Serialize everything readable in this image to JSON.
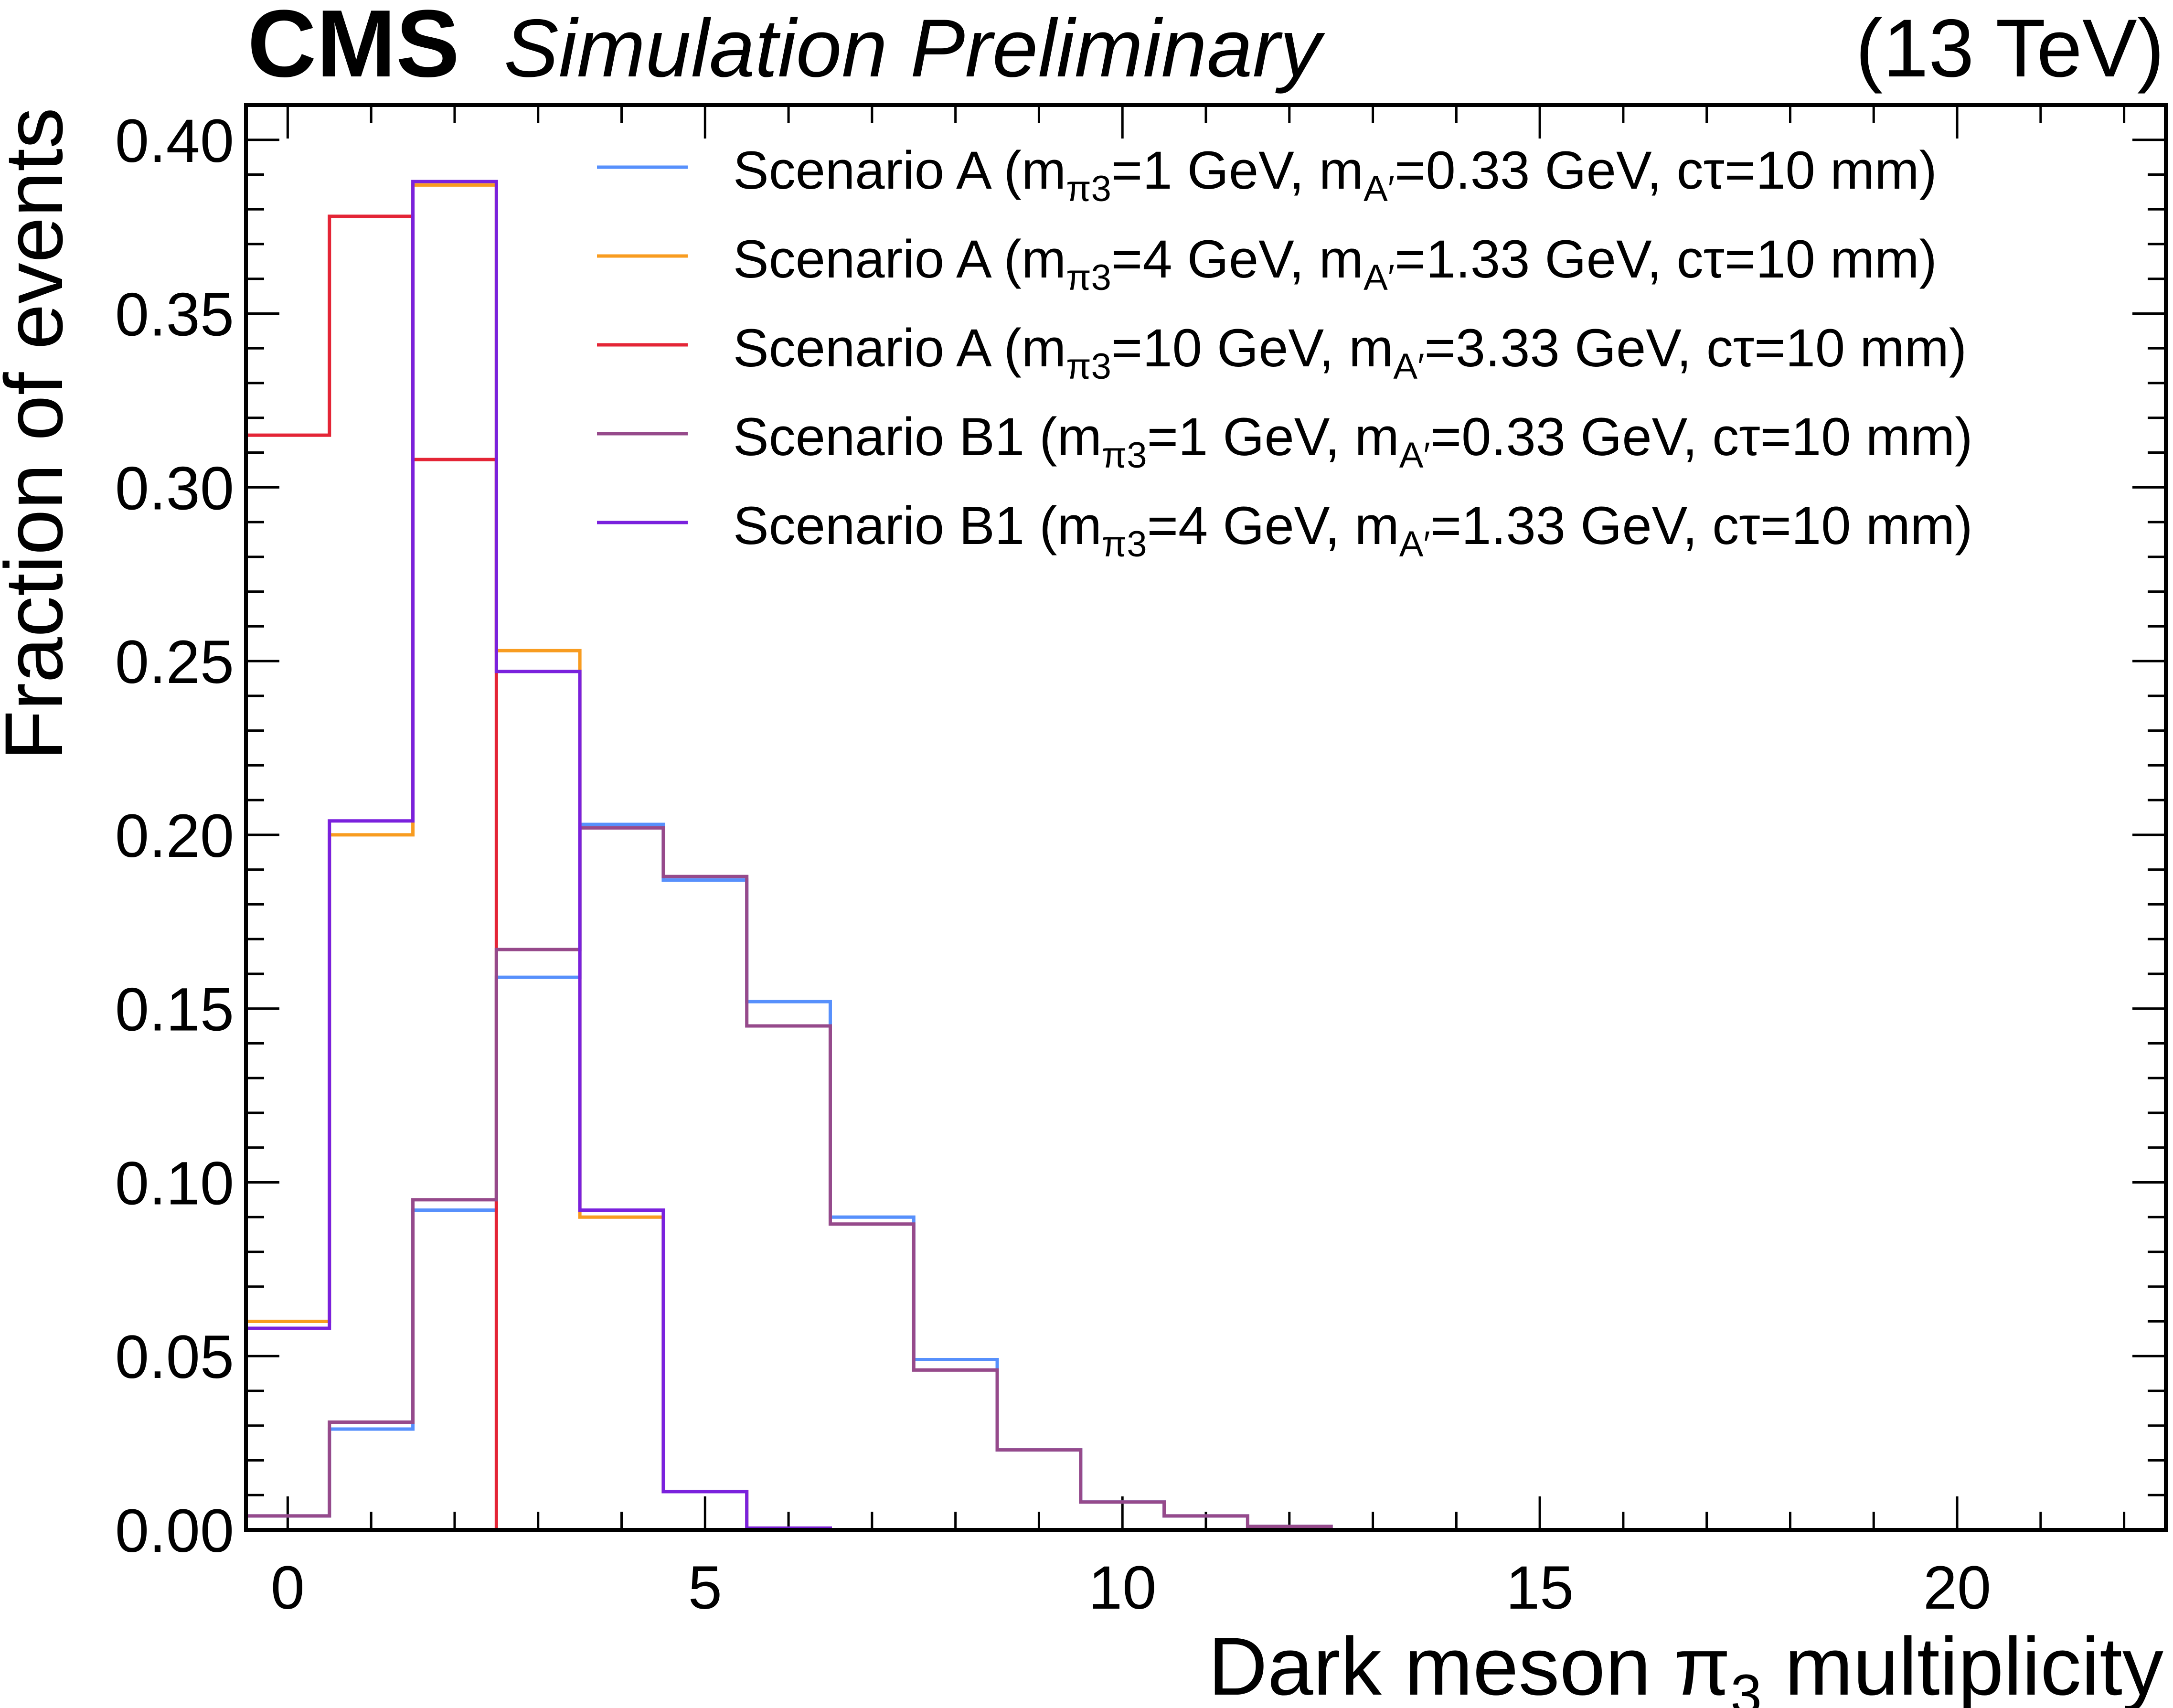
{
  "chart_data": {
    "type": "histogram-step",
    "experiment": "CMS",
    "status": "Simulation Preliminary",
    "energy": "(13 TeV)",
    "xlabel_main": "Dark meson π",
    "xlabel_sub": "3",
    "xlabel_tail": " multiplicity",
    "ylabel": "Fraction of events",
    "xlim": [
      -0.5,
      22.5
    ],
    "ylim": [
      0.0,
      0.41
    ],
    "x_ticks": [
      0,
      5,
      10,
      15,
      20
    ],
    "x_tick_labels": [
      "0",
      "5",
      "10",
      "15",
      "20"
    ],
    "y_ticks": [
      0.0,
      0.05,
      0.1,
      0.15,
      0.2,
      0.25,
      0.3,
      0.35,
      0.4
    ],
    "y_tick_labels": [
      "0.00",
      "0.05",
      "0.10",
      "0.15",
      "0.20",
      "0.25",
      "0.30",
      "0.35",
      "0.40"
    ],
    "bin_edges": [
      -0.5,
      0.5,
      1.5,
      2.5,
      3.5,
      4.5,
      5.5,
      6.5,
      7.5,
      8.5,
      9.5,
      10.5,
      11.5,
      12.5
    ],
    "series": [
      {
        "name": "Scenario A (m_π3=1 GeV, m_A′=0.33 GeV, cτ=10 mm)",
        "color": "#5790fc",
        "legend": {
          "pre": "Scenario A (m",
          "sub1": "π3",
          "mid": "=1 GeV, m",
          "sub2": "A′",
          "post": "=0.33 GeV, cτ=10 mm)"
        },
        "values": [
          0.004,
          0.029,
          0.092,
          0.159,
          0.203,
          0.187,
          0.152,
          0.09,
          0.049,
          0.023,
          0.008,
          0.004,
          0.001
        ]
      },
      {
        "name": "Scenario A (m_π3=4 GeV, m_A′=1.33 GeV, cτ=10 mm)",
        "color": "#f89c20",
        "legend": {
          "pre": "Scenario A (m",
          "sub1": "π3",
          "mid": "=4 GeV, m",
          "sub2": "A′",
          "post": "=1.33 GeV, cτ=10 mm)"
        },
        "values": [
          0.06,
          0.2,
          0.387,
          0.253,
          0.09,
          0.011,
          0.0005,
          0.0,
          0.0,
          0.0,
          0.0,
          0.0,
          0.0
        ]
      },
      {
        "name": "Scenario A (m_π3=10 GeV, m_A′=3.33 GeV, cτ=10 mm)",
        "color": "#e42536",
        "legend": {
          "pre": "Scenario A (m",
          "sub1": "π3",
          "mid": "=10 GeV, m",
          "sub2": "A′",
          "post": "=3.33 GeV, cτ=10 mm)"
        },
        "values": [
          0.315,
          0.378,
          0.308,
          0.0,
          0.0,
          0.0,
          0.0,
          0.0,
          0.0,
          0.0,
          0.0,
          0.0,
          0.0
        ]
      },
      {
        "name": "Scenario B1 (m_π3=1 GeV, m_A′=0.33 GeV, cτ=10 mm)",
        "color": "#964a8b",
        "legend": {
          "pre": "Scenario B1 (m",
          "sub1": "π3",
          "mid": "=1 GeV, m",
          "sub2": "A′",
          "post": "=0.33 GeV, cτ=10 mm)"
        },
        "values": [
          0.004,
          0.031,
          0.095,
          0.167,
          0.202,
          0.188,
          0.145,
          0.088,
          0.046,
          0.023,
          0.008,
          0.004,
          0.001
        ]
      },
      {
        "name": "Scenario B1 (m_π3=4 GeV, m_A′=1.33 GeV, cτ=10 mm)",
        "color": "#7a21dd",
        "legend": {
          "pre": "Scenario B1 (m",
          "sub1": "π3",
          "mid": "=4 GeV, m",
          "sub2": "A′",
          "post": "=1.33 GeV, cτ=10 mm)"
        },
        "values": [
          0.058,
          0.204,
          0.388,
          0.247,
          0.092,
          0.011,
          0.0005,
          0.0,
          0.0,
          0.0,
          0.0,
          0.0,
          0.0
        ]
      }
    ],
    "legend_position": "top-right",
    "grid": false
  }
}
